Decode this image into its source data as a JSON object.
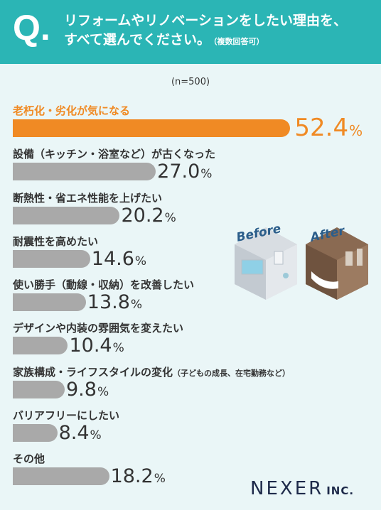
{
  "header": {
    "q_letter": "Q.",
    "line1": "リフォームやリノベーションをしたい理由を、",
    "line2": "すべて選んでください。",
    "note": "（複数回答可）"
  },
  "sample": "(n=500)",
  "illustration": {
    "before_label": "Before",
    "after_label": "After"
  },
  "logo": {
    "main": "NEXER",
    "inc": "INC."
  },
  "colors": {
    "header": "#2bb5b5",
    "highlight": "#f08a24",
    "bar": "#a9a9a9",
    "background": "#eaf6f7"
  },
  "chart_data": {
    "type": "bar",
    "orientation": "horizontal",
    "unit": "%",
    "categories": [
      "老朽化・劣化が気になる",
      "設備（キッチン・浴室など）が古くなった",
      "断熱性・省エネ性能を上げたい",
      "耐震性を高めたい",
      "使い勝手（動線・収納）を改善したい",
      "デザインや内装の雰囲気を変えたい",
      "家族構成・ライフスタイルの変化",
      "バリアフリーにしたい",
      "その他"
    ],
    "category_notes": [
      "",
      "",
      "",
      "",
      "",
      "",
      "（子どもの成長、在宅勤務など）",
      "",
      ""
    ],
    "values": [
      52.4,
      27.0,
      20.2,
      14.6,
      13.8,
      10.4,
      9.8,
      8.4,
      18.2
    ],
    "value_labels": [
      "52.4",
      "27.0",
      "20.2",
      "14.6",
      "13.8",
      "10.4",
      "9.8",
      "8.4",
      "18.2"
    ],
    "highlight_index": 0
  }
}
